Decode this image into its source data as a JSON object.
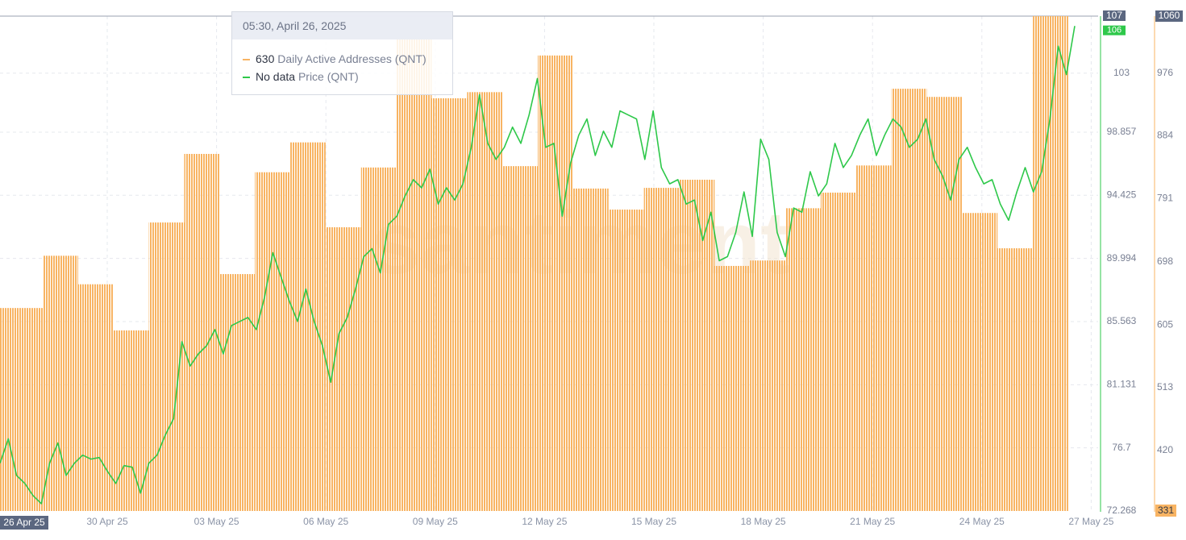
{
  "chart_data": {
    "type": "bar_line",
    "watermark": "santiment",
    "xtick_labels": [
      "26 Apr 25",
      "30 Apr 25",
      "03 May 25",
      "06 May 25",
      "09 May 25",
      "12 May 25",
      "15 May 25",
      "18 May 25",
      "21 May 25",
      "24 May 25",
      "27 May 25"
    ],
    "ylim": [
      72.268,
      107
    ],
    "yticks": [
      72.268,
      76.7,
      81.131,
      85.563,
      89.994,
      94.425,
      98.857,
      103,
      107
    ],
    "y2lim": [
      331,
      1060
    ],
    "y2ticks": [
      331,
      420,
      513,
      605,
      698,
      791,
      884,
      976,
      1060
    ],
    "grid": true,
    "last_price": 106,
    "series": [
      {
        "name": "Daily Active Addresses (QNT)",
        "type": "bar",
        "axis": "y2",
        "color": "#f8b463",
        "values": [
          630,
          707,
          665,
          597,
          756,
          857,
          680,
          830,
          874,
          749,
          837,
          1027,
          939,
          948,
          839,
          1002,
          806,
          775,
          807,
          819,
          692,
          700,
          777,
          800,
          840,
          953,
          941,
          770,
          718,
          1060,
          331
        ]
      },
      {
        "name": "Price (QNT)",
        "type": "line",
        "color": "#2ec84a",
        "values": [
          75.62,
          77.33,
          74.77,
          74.2,
          73.35,
          72.78,
          75.62,
          77.04,
          74.77,
          75.62,
          76.19,
          75.91,
          76.02,
          75.05,
          74.2,
          75.45,
          75.34,
          73.52,
          75.62,
          76.19,
          77.61,
          78.75,
          84.15,
          82.44,
          83.3,
          83.87,
          85.0,
          83.3,
          85.28,
          85.57,
          85.85,
          85.0,
          87.27,
          90.4,
          88.69,
          86.99,
          85.57,
          87.84,
          85.57,
          83.87,
          81.31,
          84.71,
          85.85,
          87.84,
          90.12,
          90.68,
          88.98,
          92.39,
          92.96,
          94.38,
          95.52,
          94.95,
          96.25,
          93.81,
          94.95,
          94.09,
          95.23,
          97.79,
          101.48,
          98.07,
          96.94,
          97.79,
          99.21,
          98.07,
          100.06,
          102.62,
          97.79,
          98.07,
          92.96,
          96.65,
          98.64,
          99.78,
          97.22,
          98.93,
          97.79,
          100.35,
          100.06,
          99.78,
          96.94,
          100.35,
          96.37,
          95.23,
          95.52,
          93.81,
          94.09,
          91.25,
          93.24,
          89.83,
          90.12,
          91.82,
          94.66,
          91.54,
          98.36,
          96.94,
          91.82,
          90.12,
          93.53,
          93.24,
          96.08,
          94.38,
          95.23,
          98.07,
          96.37,
          97.22,
          98.64,
          99.78,
          97.22,
          98.64,
          99.78,
          99.21,
          97.79,
          98.36,
          99.78,
          96.94,
          95.8,
          94.09,
          96.94,
          97.79,
          96.37,
          95.23,
          95.52,
          93.81,
          92.67,
          94.66,
          96.37,
          94.66,
          96.08,
          99.78,
          104.89,
          102.9,
          106.31
        ]
      }
    ],
    "tooltip": {
      "title": "05:30, April 26, 2025",
      "no_data": "No data"
    }
  }
}
